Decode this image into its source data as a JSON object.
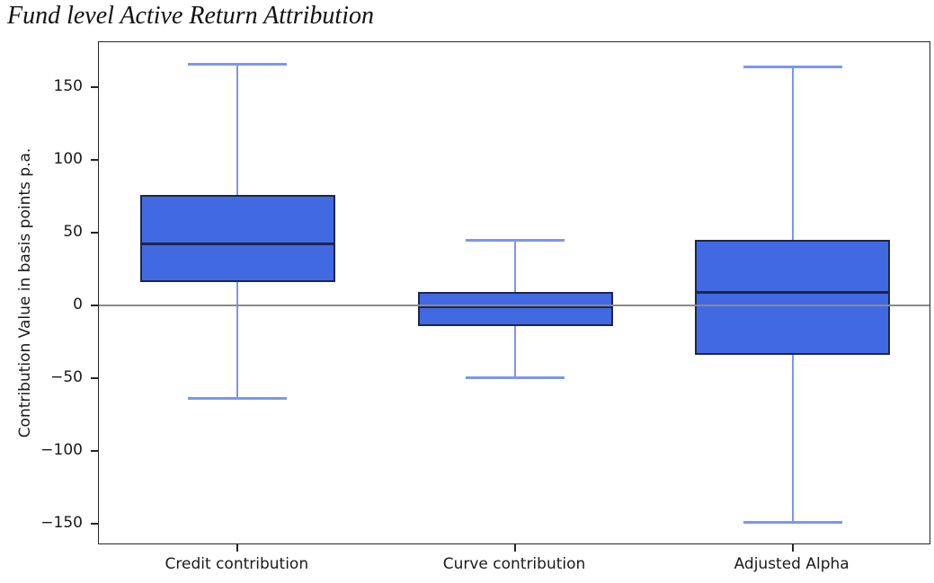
{
  "title": "Fund level Active Return Attribution",
  "chart_data": {
    "type": "boxplot",
    "title": "Fund level Active Return Attribution",
    "ylabel": "Contribution Value in basis points p.a.",
    "xlabel": "",
    "categories": [
      "Credit contribution",
      "Curve contribution",
      "Adjusted Alpha"
    ],
    "series": [
      {
        "name": "Credit contribution",
        "whisker_low": -64,
        "q1": 16,
        "median": 42,
        "q3": 76,
        "whisker_high": 166
      },
      {
        "name": "Curve contribution",
        "whisker_low": -50,
        "q1": -14,
        "median": -1,
        "q3": 9,
        "whisker_high": 45
      },
      {
        "name": "Adjusted Alpha",
        "whisker_low": -149,
        "q1": -34,
        "median": 9,
        "q3": 45,
        "whisker_high": 164
      }
    ],
    "yticks": [
      150,
      100,
      50,
      0,
      -50,
      -100,
      -150
    ],
    "ylim": [
      -165,
      181
    ],
    "zero_line": 0,
    "grid": false,
    "legend": false,
    "colors": {
      "box_fill": "#4169e1",
      "whisker": "#7b97ee",
      "box_edge": "#1e2747",
      "median": "#1e2747",
      "zero_line": "#8a8a8a",
      "spine": "#262626",
      "text": "#1a1a1a"
    }
  }
}
